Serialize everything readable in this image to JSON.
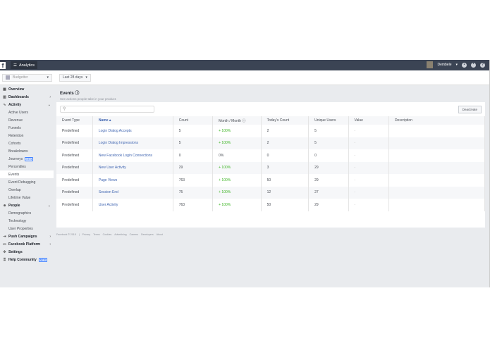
{
  "header": {
    "logo": "f",
    "app": "Analytics",
    "user": "Dembele"
  },
  "toolbar": {
    "app_select": "Budgetter",
    "date_range": "Last 28 days"
  },
  "sidebar": {
    "items": [
      {
        "label": "Overview",
        "icon": "overview-icon",
        "type": "top"
      },
      {
        "label": "Dashboards",
        "icon": "dashboard-icon",
        "type": "top",
        "chev": "›"
      },
      {
        "label": "Activity",
        "icon": "activity-icon",
        "type": "top",
        "chev": "⌄"
      },
      {
        "label": "Active Users",
        "type": "sub"
      },
      {
        "label": "Revenue",
        "type": "sub"
      },
      {
        "label": "Funnels",
        "type": "sub"
      },
      {
        "label": "Retention",
        "type": "sub"
      },
      {
        "label": "Cohorts",
        "type": "sub"
      },
      {
        "label": "Breakdowns",
        "type": "sub"
      },
      {
        "label": "Journeys",
        "type": "sub",
        "badge": "NEW"
      },
      {
        "label": "Percentiles",
        "type": "sub"
      },
      {
        "label": "Events",
        "type": "sub",
        "active": true
      },
      {
        "label": "Event Debugging",
        "type": "sub"
      },
      {
        "label": "Overlap",
        "type": "sub"
      },
      {
        "label": "Lifetime Value",
        "type": "sub"
      },
      {
        "label": "People",
        "icon": "people-icon",
        "type": "top",
        "chev": "⌄"
      },
      {
        "label": "Demographics",
        "type": "sub"
      },
      {
        "label": "Technology",
        "type": "sub"
      },
      {
        "label": "User Properties",
        "type": "sub"
      },
      {
        "label": "Push Campaigns",
        "icon": "push-icon",
        "type": "top",
        "chev": "›"
      },
      {
        "label": "Facebook Platform",
        "icon": "platform-icon",
        "type": "top",
        "chev": "›"
      },
      {
        "label": "Settings",
        "icon": "gear-icon",
        "type": "top"
      },
      {
        "label": "Help Community",
        "icon": "help-icon",
        "type": "top",
        "badge": "NEW"
      }
    ]
  },
  "main": {
    "title": "Events",
    "subtitle": "See actions people take in your product.",
    "deactivate": "Deactivate",
    "columns": [
      "Event Type",
      "Name ▴",
      "Count",
      "Month / Month ⓘ",
      "Today's Count",
      "Unique Users",
      "Value",
      "Description"
    ],
    "rows": [
      [
        "Predefined",
        "Login Dialog Accepts",
        "5",
        "+ 100%",
        "2",
        "5",
        "-",
        ""
      ],
      [
        "Predefined",
        "Login Dialog Impressions",
        "5",
        "+ 100%",
        "2",
        "5",
        "-",
        ""
      ],
      [
        "Predefined",
        "New Facebook Login Connections",
        "0",
        "0%",
        "0",
        "0",
        "-",
        ""
      ],
      [
        "Predefined",
        "New User Activity",
        "29",
        "+ 100%",
        "3",
        "29",
        "-",
        ""
      ],
      [
        "Predefined",
        "Page Views",
        "763",
        "+ 100%",
        "50",
        "29",
        "-",
        ""
      ],
      [
        "Predefined",
        "Session End",
        "75",
        "+ 100%",
        "12",
        "27",
        "-",
        ""
      ],
      [
        "Predefined",
        "User Activity",
        "763",
        "+ 100%",
        "50",
        "29",
        "-",
        ""
      ]
    ]
  },
  "footer": [
    "Facebook © 2018",
    "|",
    "Privacy",
    "Terms",
    "Cookies",
    "Advertising",
    "Careers",
    "Developers",
    "About"
  ]
}
